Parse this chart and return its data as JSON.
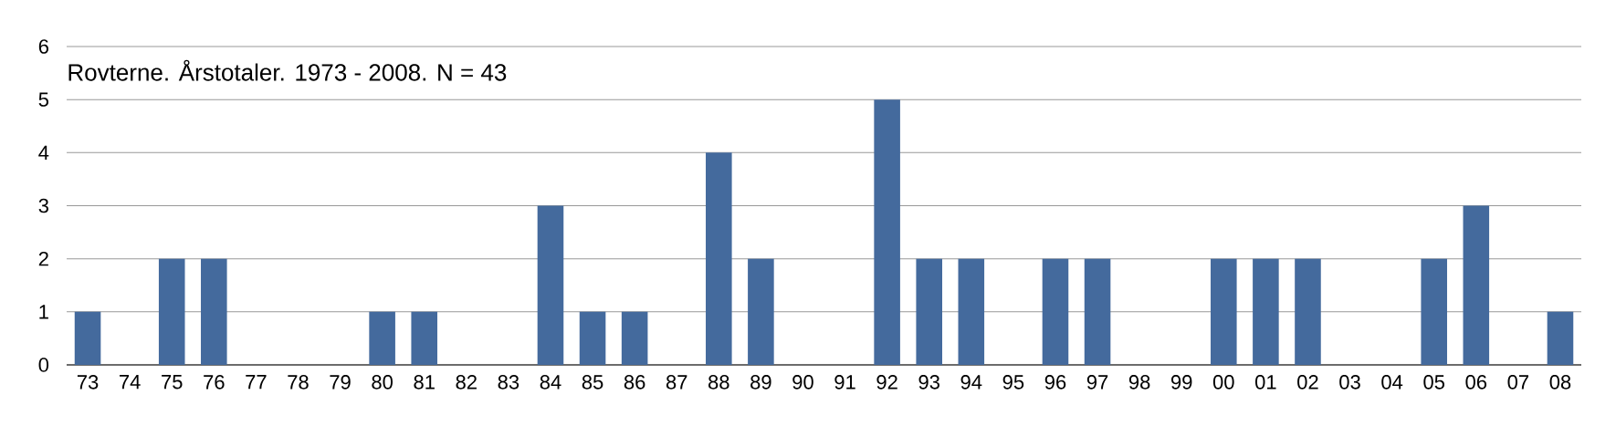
{
  "chart_data": {
    "type": "bar",
    "title": "Rovterne. Årstotaler. 1973 - 2008. N = 43",
    "categories": [
      "73",
      "74",
      "75",
      "76",
      "77",
      "78",
      "79",
      "80",
      "81",
      "82",
      "83",
      "84",
      "85",
      "86",
      "87",
      "88",
      "89",
      "90",
      "91",
      "92",
      "93",
      "94",
      "95",
      "96",
      "97",
      "98",
      "99",
      "00",
      "01",
      "02",
      "03",
      "04",
      "05",
      "06",
      "07",
      "08"
    ],
    "values": [
      1,
      0,
      2,
      2,
      0,
      0,
      0,
      1,
      1,
      0,
      0,
      3,
      1,
      1,
      0,
      4,
      2,
      0,
      0,
      5,
      2,
      2,
      0,
      2,
      2,
      0,
      0,
      2,
      2,
      2,
      0,
      0,
      2,
      3,
      0,
      1
    ],
    "color": "#446a9d",
    "ylim": [
      0,
      6
    ],
    "yticks": [
      0,
      1,
      2,
      3,
      4,
      5,
      6
    ],
    "grid": "y"
  }
}
